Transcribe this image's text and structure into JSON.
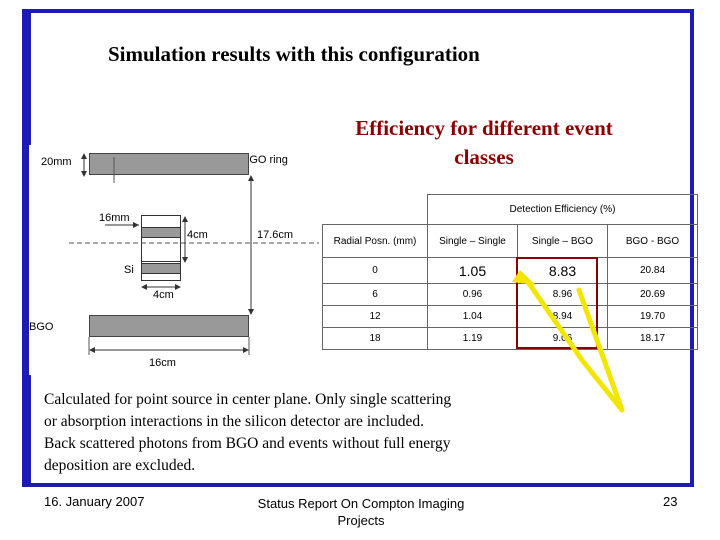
{
  "title": "Simulation results with this configuration",
  "subtitle": "Efficiency for different event classes",
  "diagram": {
    "bgo_ring": "BGO ring",
    "dim_20mm": "20mm",
    "dim_16mm": "16mm",
    "dim_4cm_a": "4cm",
    "dim_17_6cm": "17.6cm",
    "si": "Si",
    "dim_4cm_b": "4cm",
    "bgo": "BGO",
    "dim_16cm": "16cm"
  },
  "table": {
    "group_header": "Detection Efficiency (%)",
    "columns": [
      "Radial Posn. (mm)",
      "Single – Single",
      "Single – BGO",
      "BGO - BGO"
    ],
    "rows": [
      [
        "0",
        "1.05",
        "8.83",
        "20.84"
      ],
      [
        "6",
        "0.96",
        "8.96",
        "20.69"
      ],
      [
        "12",
        "1.04",
        "8.94",
        "19.70"
      ],
      [
        "18",
        "1.19",
        "9.06",
        "18.17"
      ]
    ]
  },
  "body": {
    "line1": "Calculated for point source in center plane.  Only single scattering",
    "line2": "or absorption interactions in the silicon detector are included.",
    "line3": "Back scattered photons from BGO and events without full energy",
    "line4": "deposition are excluded."
  },
  "footer": {
    "date": "16. January 2007",
    "center": "Status Report On Compton Imaging Projects",
    "page": "23"
  },
  "colors": {
    "frame": "#1c1cb4",
    "subtitle": "#8a0000",
    "arrow": "#f2e600",
    "highlight": "#8a0000"
  }
}
